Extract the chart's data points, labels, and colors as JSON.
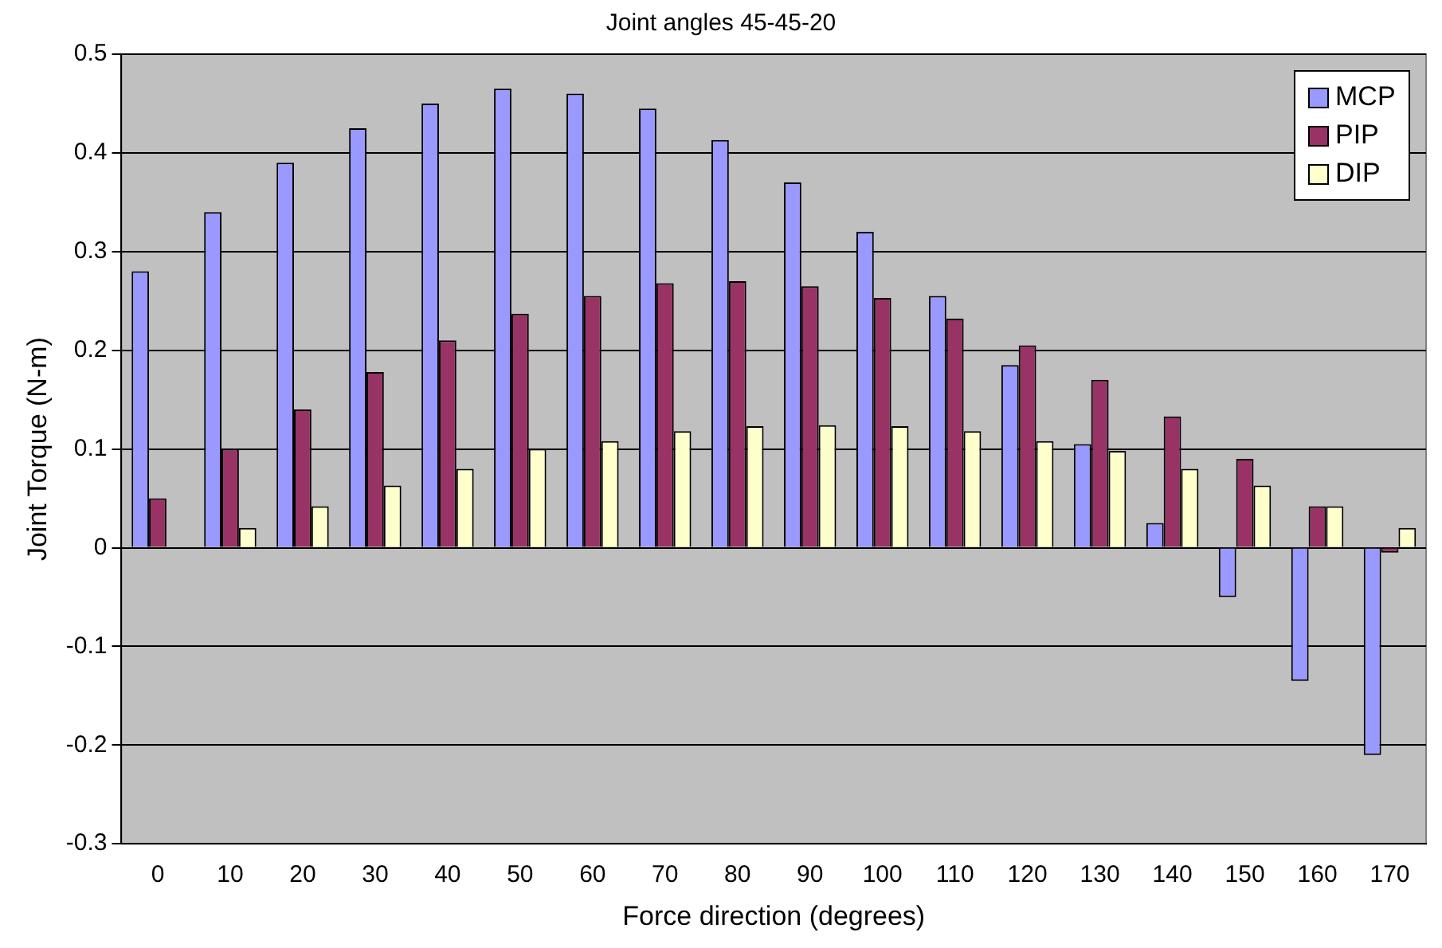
{
  "chart_data": {
    "type": "bar",
    "title": "Joint angles 45-45-20",
    "xlabel": "Force direction (degrees)",
    "ylabel": "Joint Torque (N-m)",
    "categories": [
      "0",
      "10",
      "20",
      "30",
      "40",
      "50",
      "60",
      "70",
      "80",
      "90",
      "100",
      "110",
      "120",
      "130",
      "140",
      "150",
      "160",
      "170"
    ],
    "series": [
      {
        "name": "MCP",
        "color": "#9999ff",
        "values": [
          0.28,
          0.34,
          0.39,
          0.425,
          0.45,
          0.465,
          0.46,
          0.445,
          0.413,
          0.37,
          0.32,
          0.255,
          0.185,
          0.105,
          0.025,
          -0.05,
          -0.135,
          -0.21
        ]
      },
      {
        "name": "PIP",
        "color": "#993366",
        "values": [
          0.05,
          0.1,
          0.14,
          0.178,
          0.21,
          0.237,
          0.255,
          0.268,
          0.27,
          0.265,
          0.253,
          0.232,
          0.205,
          0.17,
          0.133,
          0.09,
          0.042,
          -0.005
        ]
      },
      {
        "name": "DIP",
        "color": "#ffffcc",
        "values": [
          0,
          0.02,
          0.042,
          0.063,
          0.08,
          0.1,
          0.108,
          0.118,
          0.123,
          0.124,
          0.123,
          0.118,
          0.108,
          0.098,
          0.08,
          0.063,
          0.042,
          0.02
        ]
      }
    ],
    "ylim": [
      -0.3,
      0.5
    ],
    "yticks": [
      -0.3,
      -0.2,
      -0.1,
      0,
      0.1,
      0.2,
      0.3,
      0.4,
      0.5
    ],
    "grid": "y",
    "legend": "top right"
  }
}
